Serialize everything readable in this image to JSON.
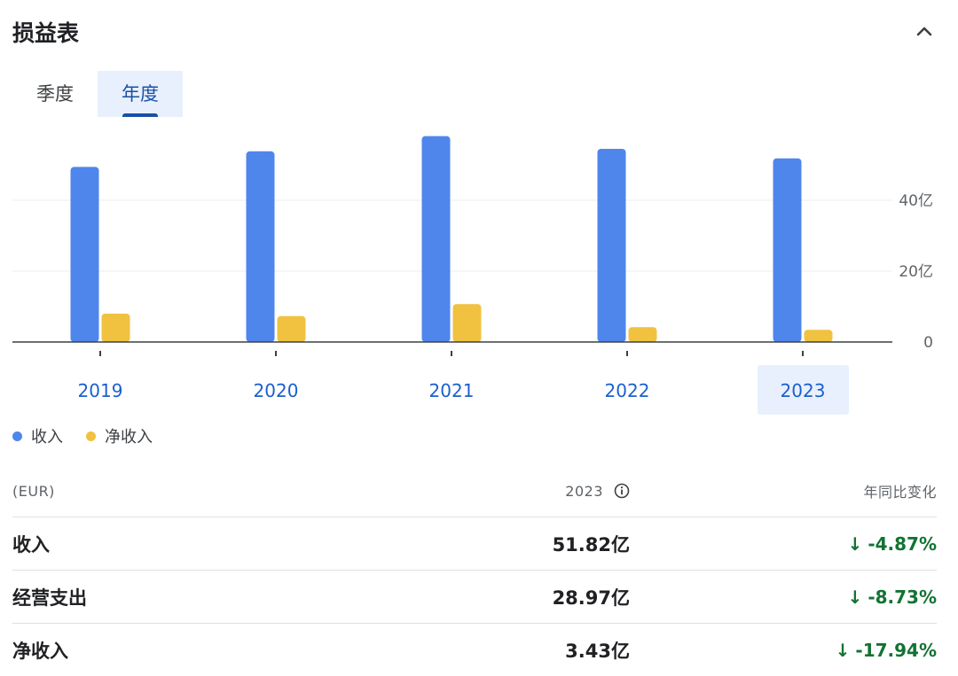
{
  "header": {
    "title": "损益表"
  },
  "tabs": [
    {
      "label": "季度",
      "active": false
    },
    {
      "label": "年度",
      "active": true
    }
  ],
  "legend": [
    {
      "label": "收入",
      "color": "#4f86ec"
    },
    {
      "label": "净收入",
      "color": "#f0c240"
    }
  ],
  "chart_data": {
    "type": "bar",
    "categories": [
      "2019",
      "2020",
      "2021",
      "2022",
      "2023"
    ],
    "selected_category": "2023",
    "series": [
      {
        "name": "收入",
        "color": "#4f86ec",
        "values": [
          49.4,
          53.8,
          58.1,
          54.5,
          51.82
        ]
      },
      {
        "name": "净收入",
        "color": "#f0c240",
        "values": [
          8.0,
          7.3,
          10.7,
          4.2,
          3.43
        ]
      }
    ],
    "yticks": [
      {
        "value": 0,
        "label": "0"
      },
      {
        "value": 20,
        "label": "20亿"
      },
      {
        "value": 40,
        "label": "40亿"
      }
    ],
    "ylim": [
      0,
      60
    ],
    "unit": "亿",
    "grid": true
  },
  "table": {
    "headers": {
      "currency": "(EUR)",
      "period": "2023",
      "change": "年同比变化"
    },
    "rows": [
      {
        "label": "收入",
        "value": "51.82亿",
        "change": "-4.87%",
        "direction": "down"
      },
      {
        "label": "经营支出",
        "value": "28.97亿",
        "change": "-8.73%",
        "direction": "down"
      },
      {
        "label": "净收入",
        "value": "3.43亿",
        "change": "-17.94%",
        "direction": "down"
      }
    ],
    "change_color": "#137333",
    "arrow_down": "↓"
  }
}
